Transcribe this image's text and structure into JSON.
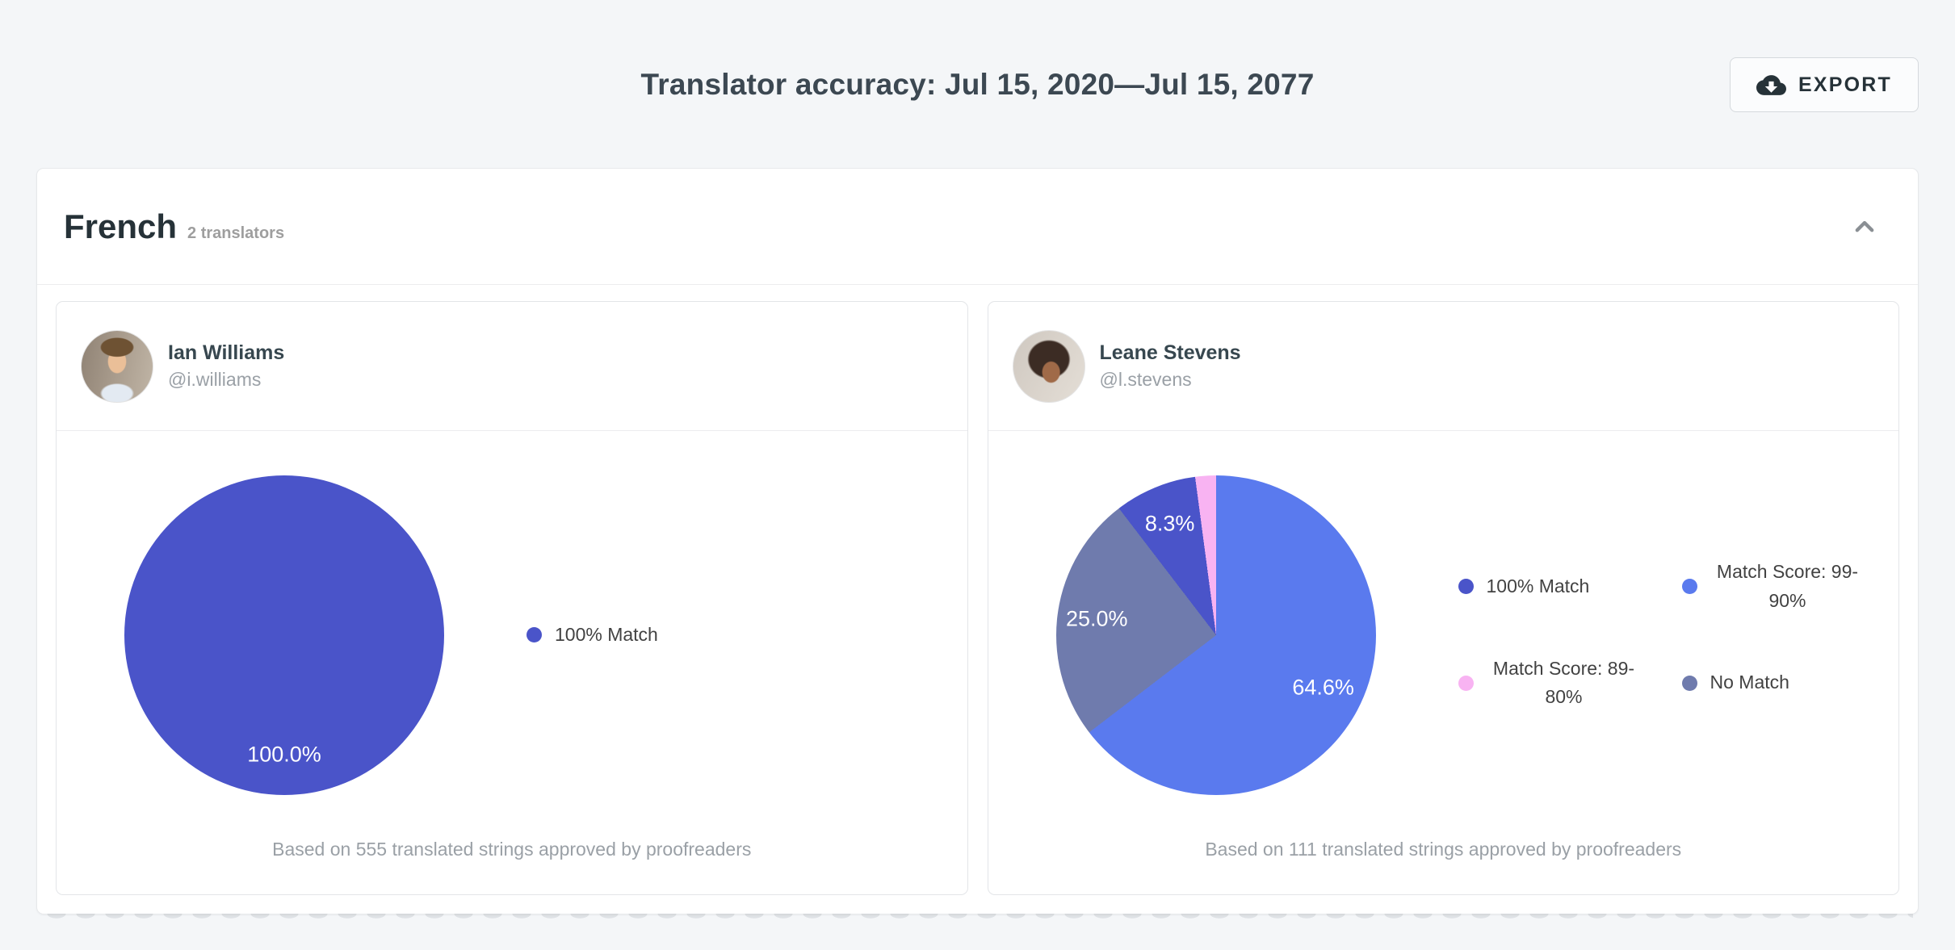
{
  "page": {
    "background": "#f4f6f8"
  },
  "header": {
    "title": "Translator accuracy: Jul 15, 2020—Jul 15, 2077",
    "export_button": {
      "label": "EXPORT",
      "icon": "cloud-download-icon"
    }
  },
  "section": {
    "language": "French",
    "translators_count": "2 translators",
    "collapse_icon": "chevron-up-icon",
    "collapsed": false
  },
  "translators": [
    {
      "name": "Ian Williams",
      "handle": "@i.williams",
      "avatar": "man-portrait-photo",
      "note": "Based on 555 translated strings approved by proofreaders"
    },
    {
      "name": "Leane Stevens",
      "handle": "@l.stevens",
      "avatar": "woman-portrait-photo",
      "note": "Based on 111 translated strings approved by proofreaders"
    }
  ],
  "colors": {
    "match_100": "#4a54c9",
    "match_99_90": "#5a7aee",
    "match_89_80": "#f8b3f2",
    "no_match": "#6f7bad",
    "accent_text": "#263238"
  },
  "chart_data": [
    {
      "type": "pie",
      "title": "Ian Williams translation accuracy",
      "slices": [
        {
          "name": "100% Match",
          "value": 100.0,
          "label": "100.0%",
          "color": "#4a54c9"
        }
      ],
      "legend": [
        {
          "label": "100% Match",
          "color": "#4a54c9"
        }
      ],
      "legend_position": "right",
      "legend_layout": "single",
      "note": "Based on 555 translated strings approved by proofreaders"
    },
    {
      "type": "pie",
      "title": "Leane Stevens translation accuracy",
      "slices": [
        {
          "name": "Match Score: 99-90%",
          "value": 64.6,
          "label": "64.6%",
          "color": "#5a7aee"
        },
        {
          "name": "No Match",
          "value": 25.0,
          "label": "25.0%",
          "color": "#6f7bad"
        },
        {
          "name": "100% Match",
          "value": 8.3,
          "label": "8.3%",
          "color": "#4a54c9"
        },
        {
          "name": "Match Score: 89-80%",
          "value": 2.1,
          "label": "",
          "color": "#f8b3f2"
        }
      ],
      "legend": [
        {
          "label": "100% Match",
          "color": "#4a54c9"
        },
        {
          "label": "Match Score: 99-90%",
          "color": "#5a7aee"
        },
        {
          "label": "Match Score: 89-80%",
          "color": "#f8b3f2"
        },
        {
          "label": "No Match",
          "color": "#6f7bad"
        }
      ],
      "legend_position": "right",
      "legend_layout": "grid-2col",
      "note": "Based on 111 translated strings approved by proofreaders"
    }
  ]
}
